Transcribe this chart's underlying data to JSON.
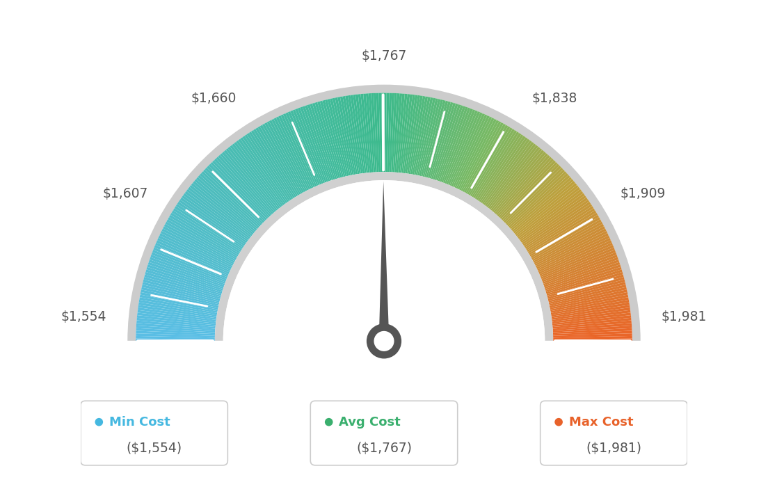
{
  "min_val": 1554,
  "max_val": 1981,
  "avg_val": 1767,
  "tick_values": [
    1554,
    1607,
    1660,
    1767,
    1838,
    1909,
    1981
  ],
  "tick_labels": [
    "$1,554",
    "$1,607",
    "$1,660",
    "$1,767",
    "$1,838",
    "$1,909",
    "$1,981"
  ],
  "legend_items": [
    {
      "label": "Min Cost",
      "value": "($1,554)",
      "color": "#45b8e0"
    },
    {
      "label": "Avg Cost",
      "value": "($1,767)",
      "color": "#3aaf6e"
    },
    {
      "label": "Max Cost",
      "value": "($1,981)",
      "color": "#e8622a"
    }
  ],
  "color_stops": [
    [
      0.0,
      [
        90,
        190,
        230
      ]
    ],
    [
      0.5,
      [
        61,
        186,
        140
      ]
    ],
    [
      0.65,
      [
        120,
        185,
        100
      ]
    ],
    [
      0.78,
      [
        190,
        160,
        60
      ]
    ],
    [
      1.0,
      [
        235,
        100,
        40
      ]
    ]
  ],
  "bg_color": "#ffffff",
  "gauge_text_color": "#555555",
  "needle_color": "#555555",
  "outer_ring_color": "#cccccc",
  "inner_ring_color": "#d0d0d0"
}
